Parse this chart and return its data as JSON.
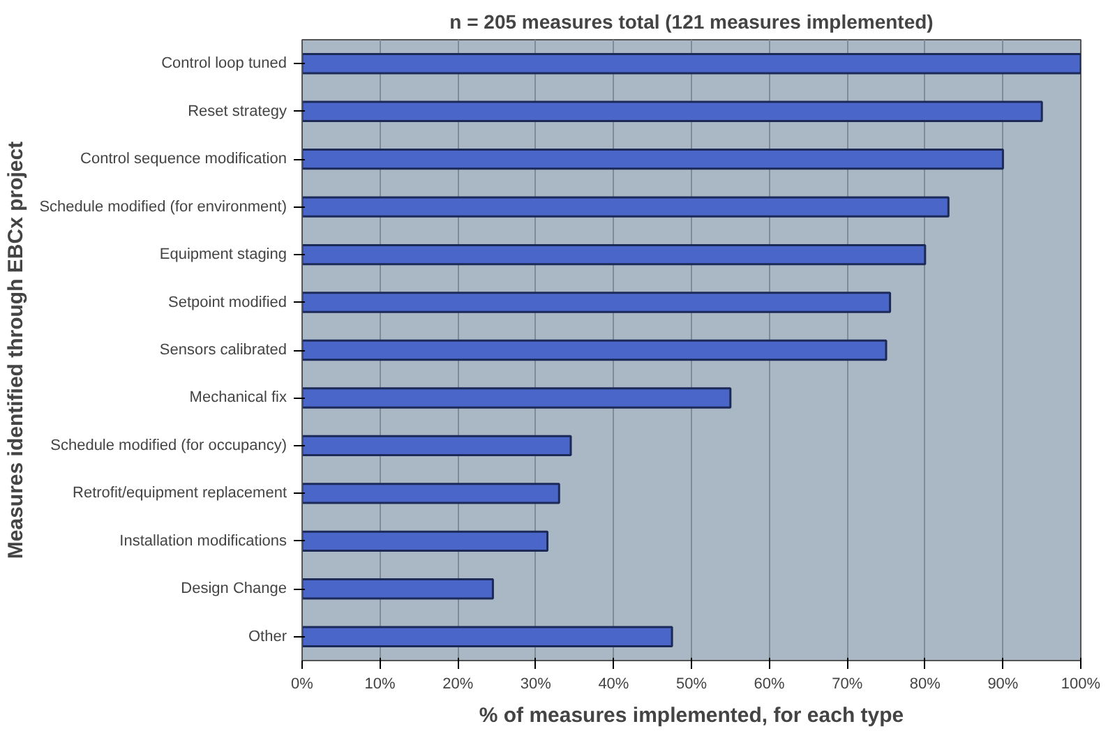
{
  "chart_data": {
    "type": "bar",
    "orientation": "horizontal",
    "title": "n = 205 measures total (121 measures implemented)",
    "xlabel": "% of measures implemented, for each type",
    "ylabel": "Measures identified through EBCx project",
    "categories": [
      "Control loop tuned",
      "Reset strategy",
      "Control sequence modification",
      "Schedule modified (for environment)",
      "Equipment staging",
      "Setpoint modified",
      "Sensors calibrated",
      "Mechanical fix",
      "Schedule modified (for occupancy)",
      "Retrofit/equipment replacement",
      "Installation modifications",
      "Design Change",
      "Other"
    ],
    "values": [
      100,
      95,
      90,
      83,
      80,
      75.5,
      75,
      55,
      34.5,
      33,
      31.5,
      24.5,
      47.5
    ],
    "color": "#4a66c9",
    "xlim": [
      0,
      100
    ],
    "xticks": [
      {
        "value": 0,
        "label": "0%"
      },
      {
        "value": 10,
        "label": "10%"
      },
      {
        "value": 20,
        "label": "20%"
      },
      {
        "value": 30,
        "label": "30%"
      },
      {
        "value": 40,
        "label": "40%"
      },
      {
        "value": 50,
        "label": "50%"
      },
      {
        "value": 60,
        "label": "60%"
      },
      {
        "value": 70,
        "label": "70%"
      },
      {
        "value": 80,
        "label": "80%"
      },
      {
        "value": 90,
        "label": "90%"
      },
      {
        "value": 100,
        "label": "100%"
      }
    ],
    "grid": "x"
  }
}
